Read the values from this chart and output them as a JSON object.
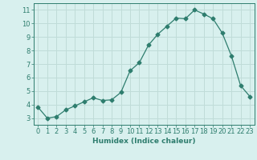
{
  "x": [
    0,
    1,
    2,
    3,
    4,
    5,
    6,
    7,
    8,
    9,
    10,
    11,
    12,
    13,
    14,
    15,
    16,
    17,
    18,
    19,
    20,
    21,
    22,
    23
  ],
  "y": [
    3.8,
    3.0,
    3.1,
    3.6,
    3.9,
    4.2,
    4.5,
    4.3,
    4.35,
    4.9,
    6.5,
    7.1,
    8.4,
    9.2,
    9.8,
    10.4,
    10.35,
    11.0,
    10.7,
    10.35,
    9.3,
    7.6,
    5.4,
    4.6
  ],
  "line_color": "#2e7d6e",
  "marker": "D",
  "marker_size": 2.5,
  "bg_color": "#d8f0ee",
  "grid_color": "#c0dcd8",
  "xlabel": "Humidex (Indice chaleur)",
  "xlim": [
    -0.5,
    23.5
  ],
  "ylim": [
    2.5,
    11.5
  ],
  "yticks": [
    3,
    4,
    5,
    6,
    7,
    8,
    9,
    10,
    11
  ],
  "xticks": [
    0,
    1,
    2,
    3,
    4,
    5,
    6,
    7,
    8,
    9,
    10,
    11,
    12,
    13,
    14,
    15,
    16,
    17,
    18,
    19,
    20,
    21,
    22,
    23
  ],
  "tick_color": "#2e7d6e",
  "label_fontsize": 6.5,
  "axis_fontsize": 6.0
}
